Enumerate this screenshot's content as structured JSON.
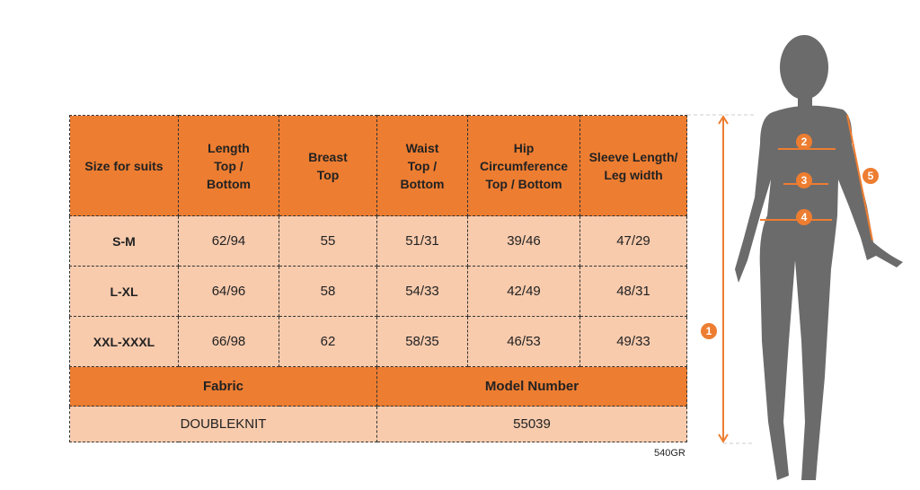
{
  "headers": [
    "Size for suits",
    "Length\nTop /\nBottom",
    "Breast\nTop",
    "Waist\nTop /\nBottom",
    "Hip\nCircumference\nTop / Bottom",
    "Sleeve Length/\nLeg width"
  ],
  "rows": [
    [
      "S-M",
      "62/94",
      "55",
      "51/31",
      "39/46",
      "47/29"
    ],
    [
      "L-XL",
      "64/96",
      "58",
      "54/33",
      "42/49",
      "48/31"
    ],
    [
      "XXL-XXXL",
      "66/98",
      "62",
      "58/35",
      "46/53",
      "49/33"
    ]
  ],
  "footer": {
    "fabric_label": "Fabric",
    "model_label": "Model Number",
    "fabric_value": "DOUBLEKNIT",
    "model_value": "55039"
  },
  "code": "540GR",
  "markers": [
    "1",
    "2",
    "3",
    "4",
    "5"
  ],
  "colors": {
    "accent": "#ed7d31",
    "light": "#f8cbad",
    "silhouette": "#6b6b6b"
  }
}
